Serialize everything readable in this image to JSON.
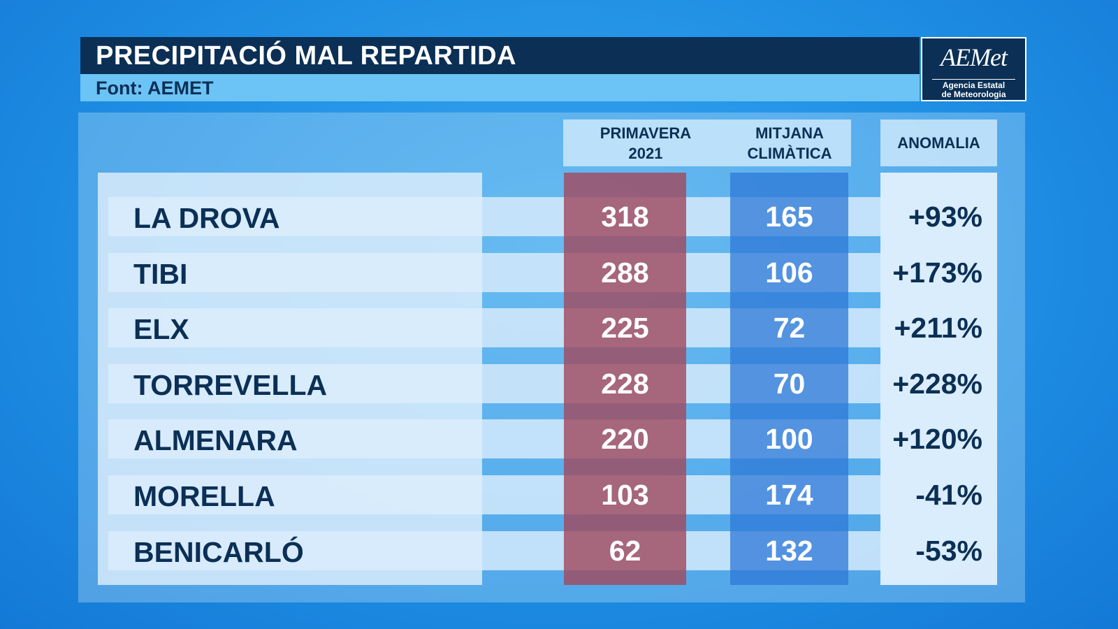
{
  "header": {
    "title": "PRECIPITACIÓ MAL REPARTIDA",
    "source": "Font: AEMET"
  },
  "logo": {
    "name": "AEMet",
    "subtitle": [
      "Agencia Estatal",
      "de Meteorologia"
    ]
  },
  "table": {
    "columns": [
      [
        "PRIMAVERA",
        "2021"
      ],
      [
        "MITJANA",
        "CLIMÀTICA"
      ],
      [
        "ANOMALIA"
      ]
    ],
    "rows": [
      [
        "LA DROVA",
        318,
        165,
        "+93%"
      ],
      [
        "TIBI",
        288,
        106,
        "+173%"
      ],
      [
        "ELX",
        225,
        72,
        "+211%"
      ],
      [
        "TORREVELLA",
        228,
        70,
        "+228%"
      ],
      [
        "ALMENARA",
        220,
        100,
        "+120%"
      ],
      [
        "MORELLA",
        103,
        174,
        "-41%"
      ],
      [
        "BENICARLÓ",
        62,
        132,
        "-53%"
      ]
    ]
  }
}
